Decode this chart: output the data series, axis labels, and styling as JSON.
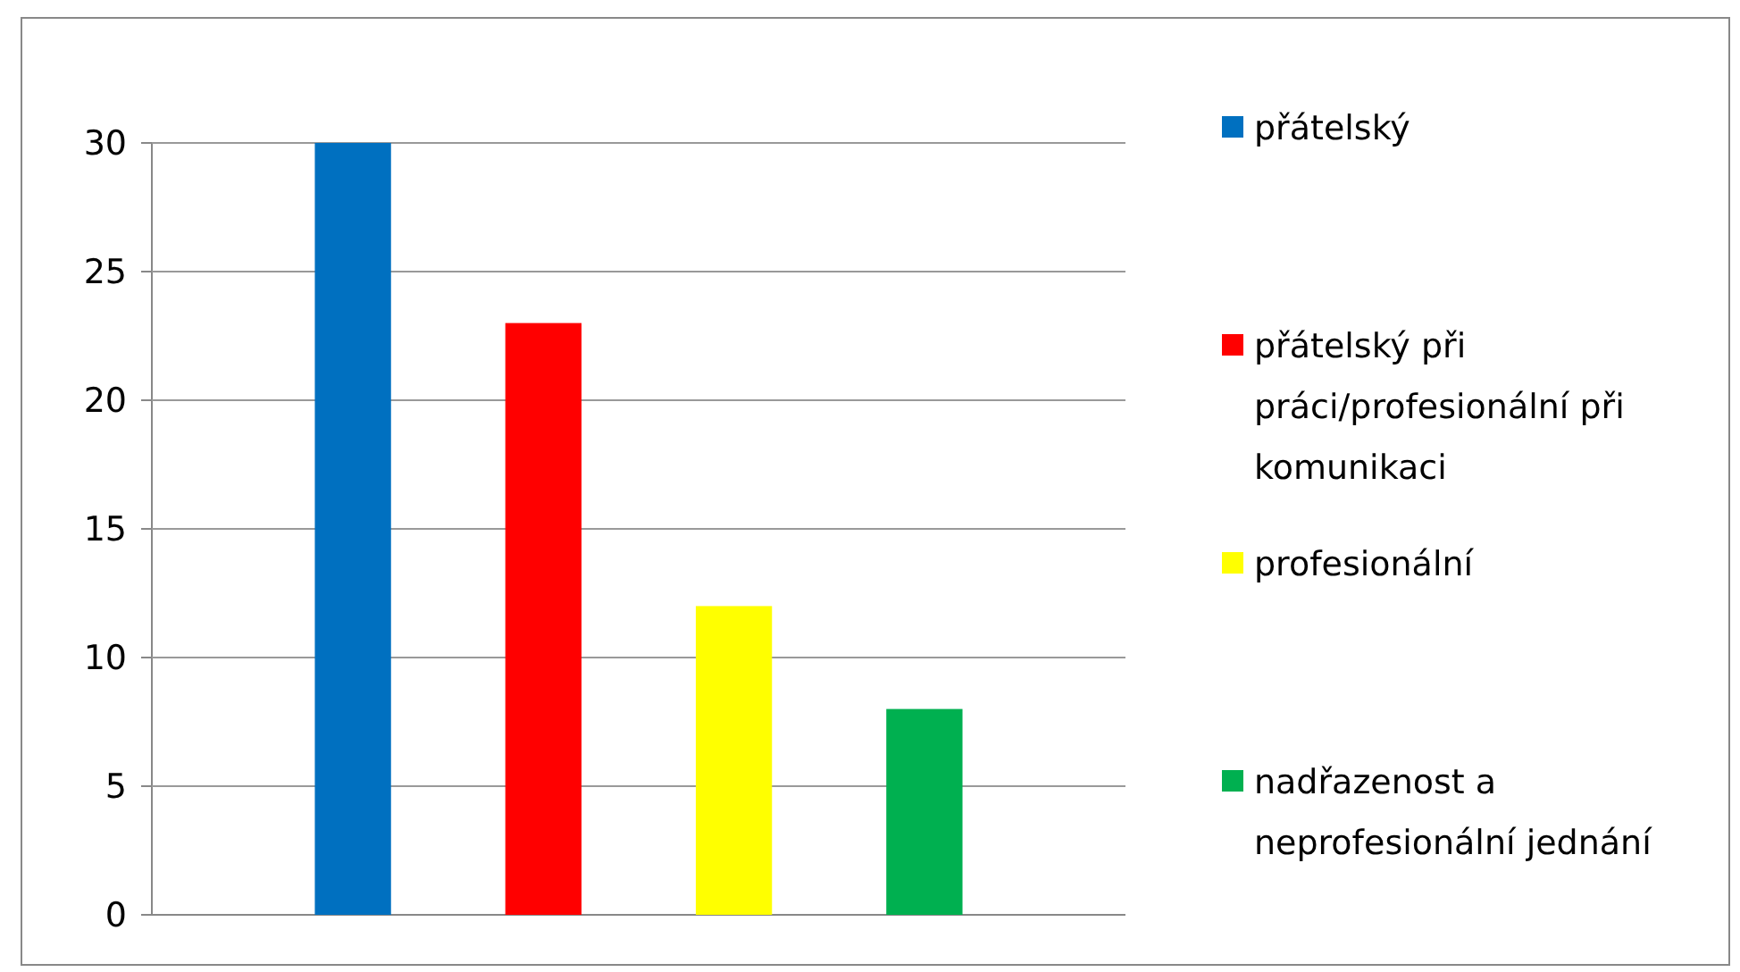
{
  "chart_data": {
    "type": "bar",
    "categories": [
      null
    ],
    "series": [
      {
        "name": "přátelský",
        "color": "#0070c0",
        "values": [
          30
        ]
      },
      {
        "name": "přátelský při práci/profesionální při komunikaci",
        "color": "#ff0000",
        "values": [
          23
        ]
      },
      {
        "name": "profesionální",
        "color": "#ffff00",
        "values": [
          12
        ]
      },
      {
        "name": "nadřazenost a neprofesionální jednání",
        "color": "#00b050",
        "values": [
          8
        ]
      }
    ],
    "ylim": [
      0,
      30
    ],
    "yticks": [
      0,
      5,
      10,
      15,
      20,
      25,
      30
    ],
    "grid": "y",
    "legend": "right"
  }
}
